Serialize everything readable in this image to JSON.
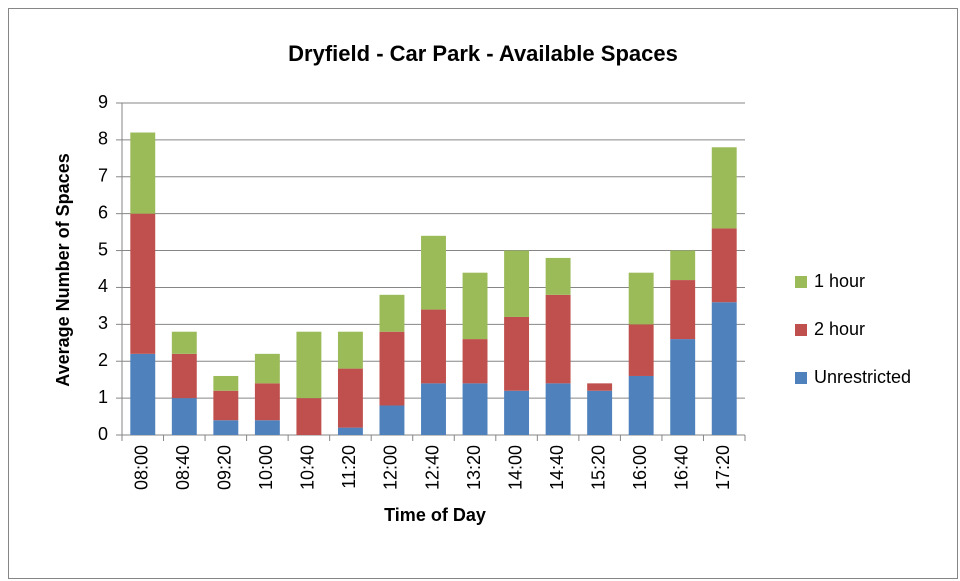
{
  "chart_data": {
    "type": "stacked_bar",
    "title": "Dryfield - Car Park - Available Spaces",
    "x_label": "Time of Day",
    "y_label": "Average Number of Spaces",
    "categories": [
      "08:00",
      "08:40",
      "09:20",
      "10:00",
      "10:40",
      "11:20",
      "12:00",
      "12:40",
      "13:20",
      "14:00",
      "14:40",
      "15:20",
      "16:00",
      "16:40",
      "17:20"
    ],
    "series": [
      {
        "name": "Unrestricted",
        "color": "#4f81bd",
        "values": [
          2.2,
          1.0,
          0.4,
          0.4,
          0,
          0.2,
          0.8,
          1.4,
          1.4,
          1.2,
          1.4,
          1.2,
          1.6,
          2.6,
          3.6
        ]
      },
      {
        "name": "2 hour",
        "color": "#c0504d",
        "values": [
          3.8,
          1.2,
          0.8,
          1.0,
          1.0,
          1.6,
          2.0,
          2.0,
          1.2,
          2.0,
          2.4,
          0.2,
          1.4,
          1.6,
          2.0
        ]
      },
      {
        "name": "1 hour",
        "color": "#9bbb59",
        "values": [
          2.2,
          0.6,
          0.4,
          0.8,
          1.8,
          1.0,
          1.0,
          2.0,
          1.8,
          1.8,
          1.0,
          0,
          1.4,
          0.8,
          2.2
        ]
      }
    ],
    "ylim": [
      0,
      9
    ],
    "yticks": [
      0,
      1,
      2,
      3,
      4,
      5,
      6,
      7,
      8,
      9
    ],
    "grid": true,
    "legend": "right"
  }
}
